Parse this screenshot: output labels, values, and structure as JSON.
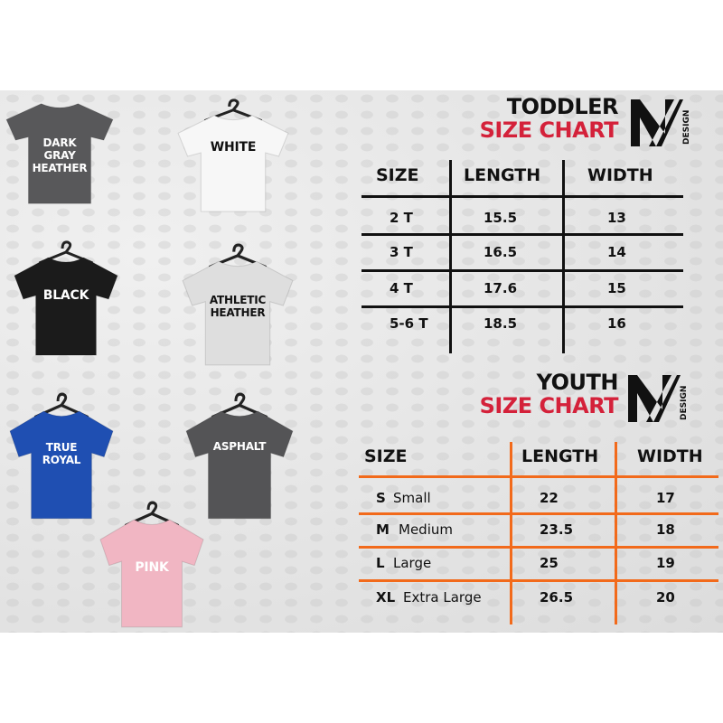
{
  "shirts": [
    {
      "label": "DARK GRAY HEATHER",
      "color": "#58585a",
      "text_color": "#ffffff"
    },
    {
      "label": "WHITE",
      "color": "#f7f7f7",
      "text_color": "#111111"
    },
    {
      "label": "BLACK",
      "color": "#1b1b1b",
      "text_color": "#ffffff"
    },
    {
      "label": "ATHLETIC HEATHER",
      "color": "#dedede",
      "text_color": "#111111"
    },
    {
      "label": "TRUE ROYAL",
      "color": "#1f4fb2",
      "text_color": "#ffffff"
    },
    {
      "label": "ASPHALT",
      "color": "#545456",
      "text_color": "#ffffff"
    },
    {
      "label": "PINK",
      "color": "#f1b6c3",
      "text_color": "#ffffff"
    }
  ],
  "toddler": {
    "title_line1": "TODDLER",
    "title_line2": "SIZE CHART",
    "logo_text": "DESIGN",
    "headers": [
      "SIZE",
      "LENGTH",
      "WIDTH"
    ],
    "rows": [
      {
        "size": "2 T",
        "length": "15.5",
        "width": "13"
      },
      {
        "size": "3 T",
        "length": "16.5",
        "width": "14"
      },
      {
        "size": "4 T",
        "length": "17.6",
        "width": "15"
      },
      {
        "size": "5-6 T",
        "length": "18.5",
        "width": "16"
      }
    ],
    "line_color": "#111111"
  },
  "youth": {
    "title_line1": "YOUTH",
    "title_line2": "SIZE CHART",
    "logo_text": "DESIGN",
    "headers": [
      "SIZE",
      "LENGTH",
      "WIDTH"
    ],
    "rows": [
      {
        "code": "S",
        "name": "Small",
        "length": "22",
        "width": "17"
      },
      {
        "code": "M",
        "name": "Medium",
        "length": "23.5",
        "width": "18"
      },
      {
        "code": "L",
        "name": "Large",
        "length": "25",
        "width": "19"
      },
      {
        "code": "XL",
        "name": "Extra Large",
        "length": "26.5",
        "width": "20"
      }
    ],
    "line_color": "#f26a1b"
  },
  "colors": {
    "title_red": "#d4213a"
  }
}
